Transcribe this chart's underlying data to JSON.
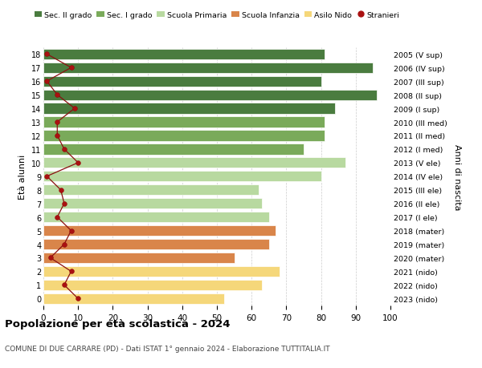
{
  "ages": [
    18,
    17,
    16,
    15,
    14,
    13,
    12,
    11,
    10,
    9,
    8,
    7,
    6,
    5,
    4,
    3,
    2,
    1,
    0
  ],
  "bar_values": [
    81,
    95,
    80,
    96,
    84,
    81,
    81,
    75,
    87,
    80,
    62,
    63,
    65,
    67,
    65,
    55,
    68,
    63,
    52
  ],
  "bar_colors": [
    "#4a7c3f",
    "#4a7c3f",
    "#4a7c3f",
    "#4a7c3f",
    "#4a7c3f",
    "#7aaa5a",
    "#7aaa5a",
    "#7aaa5a",
    "#b8d9a0",
    "#b8d9a0",
    "#b8d9a0",
    "#b8d9a0",
    "#b8d9a0",
    "#d9854a",
    "#d9854a",
    "#d9854a",
    "#f5d77a",
    "#f5d77a",
    "#f5d77a"
  ],
  "right_labels": [
    "2005 (V sup)",
    "2006 (IV sup)",
    "2007 (III sup)",
    "2008 (II sup)",
    "2009 (I sup)",
    "2010 (III med)",
    "2011 (II med)",
    "2012 (I med)",
    "2013 (V ele)",
    "2014 (IV ele)",
    "2015 (III ele)",
    "2016 (II ele)",
    "2017 (I ele)",
    "2018 (mater)",
    "2019 (mater)",
    "2020 (mater)",
    "2021 (nido)",
    "2022 (nido)",
    "2023 (nido)"
  ],
  "stranieri_values": [
    1,
    8,
    1,
    4,
    9,
    4,
    4,
    6,
    10,
    1,
    5,
    6,
    4,
    8,
    6,
    2,
    8,
    6,
    10
  ],
  "legend_labels": [
    "Sec. II grado",
    "Sec. I grado",
    "Scuola Primaria",
    "Scuola Infanzia",
    "Asilo Nido",
    "Stranieri"
  ],
  "legend_colors": [
    "#4a7c3f",
    "#7aaa5a",
    "#b8d9a0",
    "#d9854a",
    "#f5d77a",
    "#aa1111"
  ],
  "ylabel_left": "Età alunni",
  "ylabel_right": "Anni di nascita",
  "title": "Popolazione per età scolastica - 2024",
  "subtitle": "COMUNE DI DUE CARRARE (PD) - Dati ISTAT 1° gennaio 2024 - Elaborazione TUTTITALIA.IT",
  "xlim": [
    0,
    100
  ],
  "xticks": [
    0,
    10,
    20,
    30,
    40,
    50,
    60,
    70,
    80,
    90,
    100
  ],
  "bg_color": "#ffffff"
}
